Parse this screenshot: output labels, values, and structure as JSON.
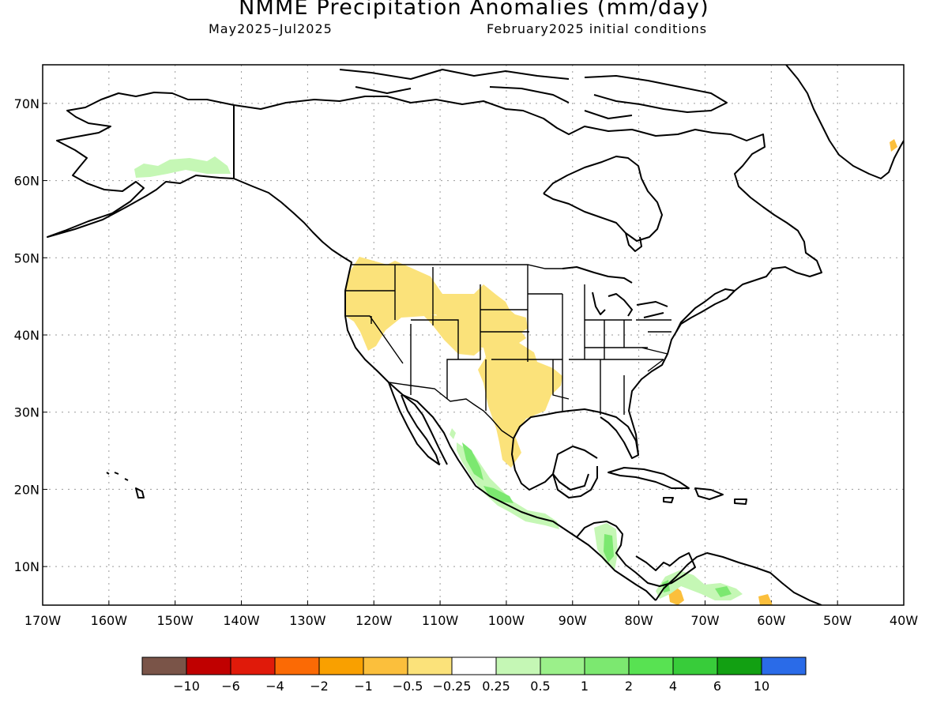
{
  "header": {
    "title": "NMME Precipitation Anomalies (mm/day)",
    "period": "May2025–Jul2025",
    "initial_conditions": "February2025 initial conditions"
  },
  "map": {
    "lon_range": [
      -170,
      -40
    ],
    "lat_range": [
      5,
      75
    ],
    "lat_labels": [
      "70N",
      "60N",
      "50N",
      "40N",
      "30N",
      "20N",
      "10N"
    ],
    "lon_labels": [
      "170W",
      "160W",
      "150W",
      "140W",
      "130W",
      "120W",
      "110W",
      "100W",
      "90W",
      "80W",
      "70W",
      "60W",
      "50W",
      "40W"
    ],
    "grid": "dotted"
  },
  "legend": {
    "colors": [
      "#7a5448",
      "#c00000",
      "#e01a0a",
      "#fb6a05",
      "#f9a000",
      "#fbbf3c",
      "#fbe27a",
      "#ffffff",
      "#c5f7b5",
      "#9bf08a",
      "#7ce870",
      "#58e252",
      "#38cc3a",
      "#12a012",
      "#2a6be8"
    ],
    "labels": [
      "−10",
      "−6",
      "−4",
      "−2",
      "−1",
      "−0.5",
      "−0.25",
      "0.25",
      "0.5",
      "1",
      "2",
      "4",
      "6",
      "10"
    ]
  }
}
